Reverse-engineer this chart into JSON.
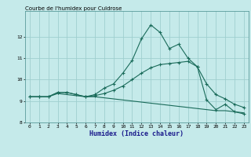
{
  "title": "Courbe de l'humidex pour Culdrose",
  "xlabel": "Humidex (Indice chaleur)",
  "xlim_min": -0.5,
  "xlim_max": 23.5,
  "ylim_min": 8.0,
  "ylim_max": 13.2,
  "yticks": [
    8,
    9,
    10,
    11,
    12
  ],
  "xticks": [
    0,
    1,
    2,
    3,
    4,
    5,
    6,
    7,
    8,
    9,
    10,
    11,
    12,
    13,
    14,
    15,
    16,
    17,
    18,
    19,
    20,
    21,
    22,
    23
  ],
  "bg_color": "#c5eaea",
  "grid_color": "#9fcfcf",
  "line_color": "#1a6b5a",
  "line1_x": [
    0,
    1,
    2,
    3,
    4,
    5,
    6,
    7,
    8,
    9,
    10,
    11,
    12,
    13,
    14,
    15,
    16,
    17,
    18,
    19,
    20,
    21,
    22,
    23
  ],
  "line1_y": [
    9.2,
    9.2,
    9.2,
    9.4,
    9.4,
    9.3,
    9.2,
    9.3,
    9.6,
    9.8,
    10.3,
    10.9,
    11.9,
    12.55,
    12.2,
    11.45,
    11.65,
    11.0,
    10.6,
    9.05,
    8.6,
    8.85,
    8.5,
    8.4
  ],
  "line2_x": [
    0,
    1,
    2,
    3,
    4,
    5,
    6,
    7,
    8,
    9,
    10,
    11,
    12,
    13,
    14,
    15,
    16,
    17,
    18,
    19,
    20,
    21,
    22,
    23
  ],
  "line2_y": [
    9.2,
    9.2,
    9.2,
    9.4,
    9.4,
    9.3,
    9.2,
    9.25,
    9.35,
    9.5,
    9.7,
    10.0,
    10.3,
    10.55,
    10.7,
    10.75,
    10.8,
    10.85,
    10.6,
    9.8,
    9.3,
    9.1,
    8.85,
    8.7
  ],
  "line3_x": [
    0,
    1,
    2,
    3,
    4,
    5,
    6,
    7,
    8,
    9,
    10,
    11,
    12,
    13,
    14,
    15,
    16,
    17,
    18,
    19,
    20,
    21,
    22,
    23
  ],
  "line3_y": [
    9.2,
    9.2,
    9.2,
    9.35,
    9.3,
    9.25,
    9.2,
    9.2,
    9.15,
    9.1,
    9.05,
    9.0,
    8.95,
    8.9,
    8.85,
    8.8,
    8.75,
    8.7,
    8.65,
    8.6,
    8.55,
    8.55,
    8.5,
    8.45
  ]
}
